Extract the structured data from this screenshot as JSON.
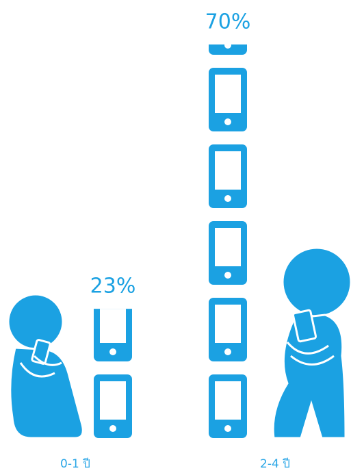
{
  "chart_data": {
    "type": "pictograph",
    "categories": [
      "0-1 ปี",
      "2-4 ปี"
    ],
    "values": [
      23,
      70
    ],
    "value_labels": [
      "23%",
      "70%"
    ],
    "color": "#1ba1e2"
  }
}
